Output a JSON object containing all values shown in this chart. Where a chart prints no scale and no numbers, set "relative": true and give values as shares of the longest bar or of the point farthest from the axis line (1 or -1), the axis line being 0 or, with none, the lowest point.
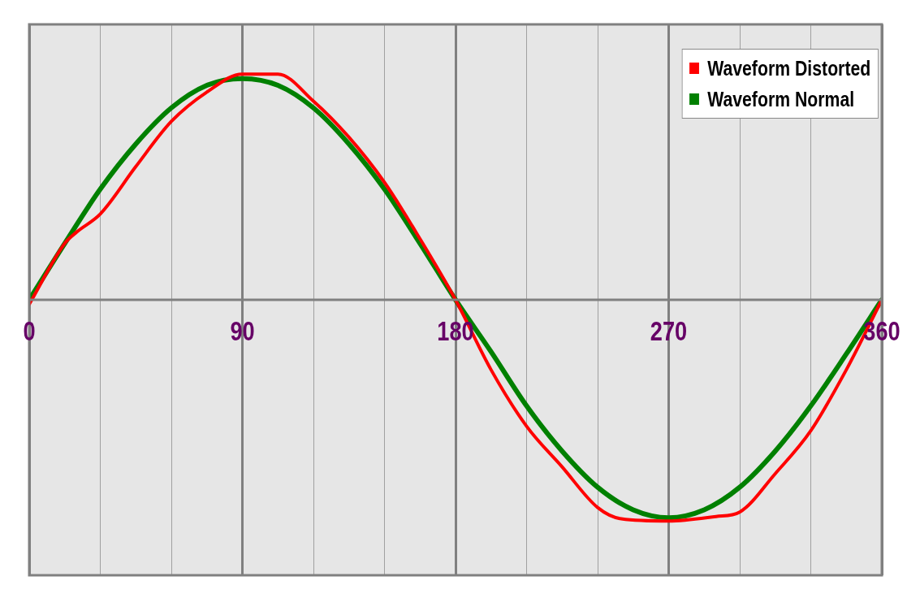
{
  "chart_data": {
    "type": "line",
    "relative": true,
    "grid": "x",
    "legend": "top right",
    "marker": "none",
    "line_style": "solid",
    "x": [
      0,
      15,
      30,
      45,
      60,
      75,
      90,
      105,
      120,
      135,
      150,
      165,
      180,
      195,
      210,
      225,
      240,
      255,
      270,
      285,
      300,
      315,
      330,
      345,
      360
    ],
    "xlim": [
      0,
      360
    ],
    "xticks": [
      0,
      {
        "value": 30,
        "label": null
      },
      {
        "value": 60,
        "label": null
      },
      90,
      {
        "value": 120,
        "label": null
      },
      {
        "value": 150,
        "label": null
      },
      180,
      {
        "value": 210,
        "label": null
      },
      {
        "value": 240,
        "label": null
      },
      270,
      {
        "value": 300,
        "label": null
      },
      {
        "value": 330,
        "label": null
      },
      360
    ],
    "series": [
      {
        "name": "Waveform Distorted",
        "color": "#ff0000",
        "x": [
          0,
          15,
          20,
          30,
          45,
          60,
          75,
          90,
          105,
          120,
          135,
          150,
          165,
          180,
          195,
          210,
          225,
          240,
          250,
          270,
          290,
          300,
          315,
          330,
          345,
          360
        ],
        "values": [
          -0.02,
          0.25,
          0.3,
          0.38,
          0.59,
          0.79,
          0.92,
          1.0,
          1.0,
          0.88,
          0.72,
          0.52,
          0.27,
          0,
          -0.31,
          -0.56,
          -0.74,
          -0.92,
          -0.97,
          -0.98,
          -0.96,
          -0.94,
          -0.77,
          -0.58,
          -0.31,
          0
        ]
      },
      {
        "name": "Waveform Normal",
        "color": "#008000",
        "values": [
          0,
          0.25,
          0.49,
          0.69,
          0.85,
          0.95,
          0.98,
          0.95,
          0.85,
          0.69,
          0.49,
          0.25,
          0,
          -0.23,
          -0.47,
          -0.67,
          -0.83,
          -0.93,
          -0.965,
          -0.93,
          -0.83,
          -0.67,
          -0.47,
          -0.24,
          0
        ]
      }
    ]
  }
}
